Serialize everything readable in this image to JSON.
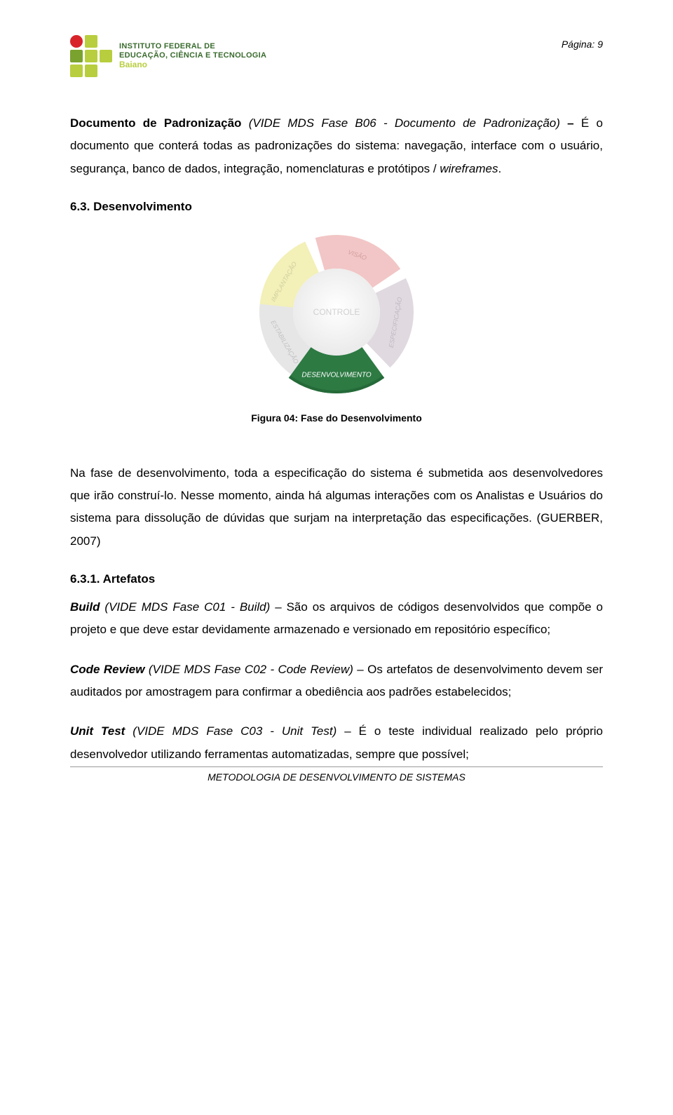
{
  "header": {
    "logo": {
      "line1": "INSTITUTO FEDERAL DE",
      "line2": "EDUCAÇÃO, CIÊNCIA E TECNOLOGIA",
      "line3": "Baiano",
      "colors": {
        "red": "#d8232a",
        "light_green": "#b8ce3e",
        "dark_green": "#7aa22e",
        "text_green": "#3a6b2e"
      }
    },
    "page_label": "Página: 9"
  },
  "para1": {
    "lead_bold": "Documento de Padronização",
    "lead_italic": " (VIDE MDS Fase B06 - Documento de Padronização)",
    "dash_bold": " – ",
    "rest1": "É o documento que conterá todas as padronizações do sistema: navegação, interface com o usuário, segurança, banco de dados, integração, nomenclaturas e protótipos / ",
    "wireframes": "wireframes",
    "period": "."
  },
  "section63": {
    "heading": "6.3. Desenvolvimento",
    "figure_caption": "Figura 04: Fase do Desenvolvimento"
  },
  "diagram": {
    "type": "ring",
    "center_label": "CONTROLE",
    "center_text_color": "#d0d0d0",
    "segments": [
      {
        "label": "IMPLANTAÇÃO",
        "color": "#f3f0b8",
        "text_color": "#cfcfa0",
        "angle_center": 300
      },
      {
        "label": "VISÃO",
        "color": "#f2c6c6",
        "text_color": "#d59f9f",
        "angle_center": 20
      },
      {
        "label": "ESPECIFICAÇÃO",
        "color": "#e0d9e0",
        "text_color": "#c2b8c2",
        "angle_center": 100
      },
      {
        "label": "DESENVOLVIMENTO",
        "color": "#2d7a43",
        "text_color": "#ffffff",
        "angle_center": 180,
        "highlighted": true
      },
      {
        "label": "ESTABILIZAÇÃO",
        "color": "#e6e6e6",
        "text_color": "#c2c2c2",
        "angle_center": 240
      }
    ],
    "outer_radius": 110,
    "inner_radius": 62,
    "background": "#ffffff"
  },
  "para2": "Na fase de desenvolvimento, toda a especificação do sistema é submetida aos desenvolvedores que irão construí-lo. Nesse momento, ainda há algumas interações com os Analistas e Usuários do sistema para dissolução de dúvidas que surjam na interpretação das especificações. (GUERBER, 2007)",
  "section631": {
    "heading": "6.3.1. Artefatos",
    "build": {
      "lead_bi": "Build",
      "lead_italic": " (VIDE MDS Fase C01 - Build)",
      "rest": " – São os arquivos de códigos desenvolvidos que compõe o projeto e que deve estar devidamente armazenado e versionado em repositório específico;"
    },
    "code_review": {
      "lead_bi": "Code Review",
      "lead_italic": " (VIDE MDS Fase C02 - Code Review)",
      "rest": " – Os artefatos de desenvolvimento devem ser auditados por amostragem para confirmar a obediência aos padrões estabelecidos;"
    },
    "unit_test": {
      "lead_bi": "Unit Test",
      "lead_italic": " (VIDE MDS Fase C03 - Unit Test)",
      "rest": " – É o teste individual realizado pelo próprio desenvolvedor utilizando ferramentas automatizadas, sempre que possível;"
    }
  },
  "footer": {
    "text": "METODOLOGIA DE DESENVOLVIMENTO DE SISTEMAS"
  }
}
